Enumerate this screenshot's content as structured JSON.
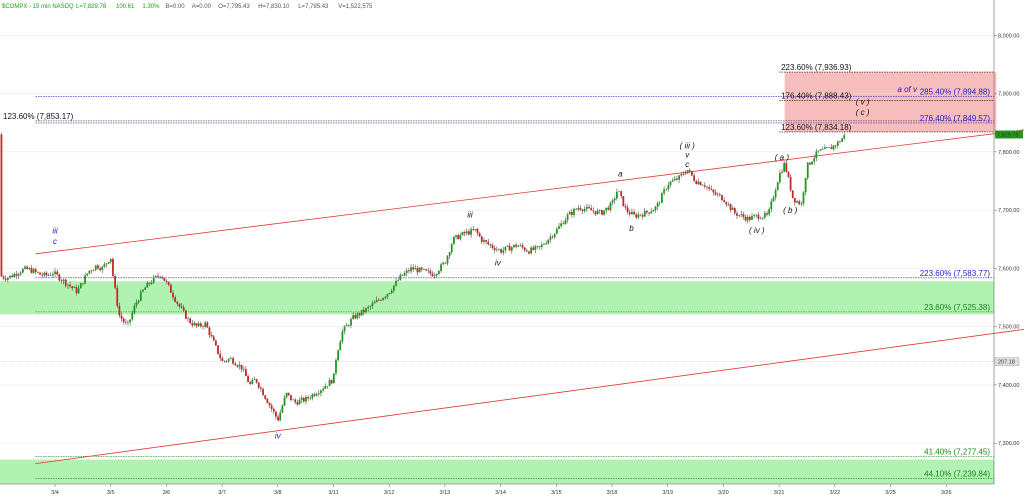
{
  "header": {
    "symbol": "$COMPX - 15 min  NASDQ",
    "stats": [
      {
        "text": "L=7,829.78",
        "color": "#1e9b1e"
      },
      {
        "text": "100.61",
        "color": "#1e9b1e"
      },
      {
        "text": "1.30%",
        "color": "#1e9b1e"
      },
      {
        "text": "B=0.00",
        "color": "#555555"
      },
      {
        "text": "A=0.00",
        "color": "#555555"
      },
      {
        "text": "O=7,795.43",
        "color": "#555555"
      },
      {
        "text": "H=7,830.10",
        "color": "#555555"
      },
      {
        "text": "L=7,795.43",
        "color": "#555555"
      },
      {
        "text": "V=1,522,575",
        "color": "#555555"
      }
    ]
  },
  "chart_data": {
    "type": "candlestick",
    "ylim": [
      7230,
      8040
    ],
    "y_ticks": [
      {
        "v": 8000,
        "label": "8,000.00"
      },
      {
        "v": 7900,
        "label": "7,900.00"
      },
      {
        "v": 7800,
        "label": "7,800.00"
      },
      {
        "v": 7700,
        "label": "7,700.00"
      },
      {
        "v": 7600,
        "label": "7,600.00"
      },
      {
        "v": 7500,
        "label": "7,500.00"
      },
      {
        "v": 7400,
        "label": "7,400.00"
      },
      {
        "v": 7300,
        "label": "7,300.00"
      }
    ],
    "x_ticks": [
      "3/4",
      "3/5",
      "3/6",
      "3/7",
      "3/8",
      "3/11",
      "3/12",
      "3/13",
      "3/14",
      "3/15",
      "3/18",
      "3/19",
      "3/20",
      "3/21",
      "3/22",
      "3/25",
      "3/26"
    ],
    "last_price": {
      "v": 7829.78,
      "label": "7,829.78",
      "color": "#1e9b1e"
    },
    "volume_marker": {
      "label": "207.18",
      "y_level": 7440
    },
    "close_path": [
      [
        0,
        7590
      ],
      [
        0.2,
        7575
      ],
      [
        0.4,
        7560
      ],
      [
        0.6,
        7595
      ],
      [
        0.75,
        7605
      ],
      [
        0.85,
        7600
      ],
      [
        1.0,
        7620
      ],
      [
        1.05,
        7580
      ],
      [
        1.15,
        7520
      ],
      [
        1.3,
        7500
      ],
      [
        1.45,
        7540
      ],
      [
        1.6,
        7565
      ],
      [
        1.75,
        7580
      ],
      [
        1.9,
        7590
      ],
      [
        2.0,
        7575
      ],
      [
        2.2,
        7540
      ],
      [
        2.4,
        7510
      ],
      [
        2.55,
        7500
      ],
      [
        2.7,
        7505
      ],
      [
        3.0,
        7440
      ],
      [
        3.15,
        7445
      ],
      [
        3.35,
        7430
      ],
      [
        3.5,
        7400
      ],
      [
        3.6,
        7410
      ],
      [
        4.0,
        7340
      ],
      [
        4.15,
        7385
      ],
      [
        4.3,
        7370
      ],
      [
        4.5,
        7375
      ],
      [
        4.65,
        7385
      ],
      [
        4.8,
        7395
      ],
      [
        5.0,
        7410
      ],
      [
        5.05,
        7450
      ],
      [
        5.15,
        7490
      ],
      [
        5.35,
        7515
      ],
      [
        5.6,
        7530
      ],
      [
        5.8,
        7545
      ],
      [
        6.0,
        7560
      ],
      [
        6.2,
        7585
      ],
      [
        6.4,
        7600
      ],
      [
        6.6,
        7595
      ],
      [
        6.8,
        7590
      ],
      [
        7.0,
        7610
      ],
      [
        7.15,
        7650
      ],
      [
        7.35,
        7660
      ],
      [
        7.55,
        7665
      ],
      [
        7.65,
        7650
      ],
      [
        7.8,
        7640
      ],
      [
        8.0,
        7630
      ],
      [
        8.3,
        7640
      ],
      [
        8.5,
        7630
      ],
      [
        8.7,
        7635
      ],
      [
        9.0,
        7665
      ],
      [
        9.2,
        7690
      ],
      [
        9.4,
        7705
      ],
      [
        9.6,
        7700
      ],
      [
        9.8,
        7695
      ],
      [
        10.0,
        7710
      ],
      [
        10.1,
        7735
      ],
      [
        10.25,
        7700
      ],
      [
        10.4,
        7690
      ],
      [
        10.6,
        7695
      ],
      [
        10.8,
        7705
      ],
      [
        11.0,
        7745
      ],
      [
        11.2,
        7755
      ],
      [
        11.35,
        7770
      ],
      [
        11.5,
        7750
      ],
      [
        11.65,
        7745
      ],
      [
        11.8,
        7730
      ],
      [
        12.0,
        7720
      ],
      [
        12.2,
        7695
      ],
      [
        12.45,
        7685
      ],
      [
        12.6,
        7690
      ],
      [
        12.8,
        7690
      ],
      [
        13.0,
        7760
      ],
      [
        13.1,
        7780
      ],
      [
        13.25,
        7720
      ],
      [
        13.4,
        7710
      ],
      [
        13.5,
        7775
      ],
      [
        13.7,
        7800
      ],
      [
        13.9,
        7805
      ],
      [
        14.05,
        7815
      ],
      [
        14.2,
        7829.78
      ]
    ],
    "channel_lines": [
      {
        "name": "upper",
        "color": "#e53935",
        "points": [
          [
            -0.35,
            7625
          ],
          [
            17.6,
            7840
          ]
        ]
      },
      {
        "name": "lower",
        "color": "#e53935",
        "points": [
          [
            -0.35,
            7265
          ],
          [
            17.6,
            7498
          ]
        ]
      }
    ],
    "zones": [
      {
        "name": "green-upper",
        "top": 7578,
        "bottom": 7521,
        "color": "#a8f0a8"
      },
      {
        "name": "green-lower",
        "top": 7272,
        "bottom": 7230,
        "color": "#a8f0a8"
      },
      {
        "name": "red-target",
        "top": 7936.93,
        "bottom": 7834.18,
        "x0": 13.1,
        "x1": 16.9,
        "color": "#f6b6b6"
      }
    ],
    "fib_levels": [
      {
        "value": 7936.93,
        "label": "223.60% (7,936.93)",
        "color": "#111111",
        "side": "mid",
        "x0": 13.0
      },
      {
        "value": 7894.88,
        "label": "285.40% (7,894.88)",
        "color": "#2020d0",
        "side": "right",
        "x0": -0.35
      },
      {
        "value": 7888.43,
        "label": "176.40% (7,888.43)",
        "color": "#111111",
        "side": "mid",
        "x0": 13.0
      },
      {
        "value": 7853.17,
        "label": "123.60% (7,853.17)",
        "color": "#111111",
        "side": "left",
        "x0": -0.35
      },
      {
        "value": 7849.57,
        "label": "276.40% (7,849.57)",
        "color": "#2020d0",
        "side": "right",
        "x0": -0.35
      },
      {
        "value": 7834.18,
        "label": "123.60% (7,834.18)",
        "color": "#111111",
        "side": "mid",
        "x0": 13.0
      },
      {
        "value": 7583.77,
        "label": "223.60% (7,583.77)",
        "color": "#2020d0",
        "side": "right",
        "x0": -0.35
      },
      {
        "value": 7525.38,
        "label": "23.60% (7,525.38)",
        "color": "#1a8a1a",
        "side": "right",
        "x0": -0.35
      },
      {
        "value": 7277.45,
        "label": "41.40% (7,277.45)",
        "color": "#1a8a1a",
        "side": "right",
        "x0": -0.35
      },
      {
        "value": 7239.84,
        "label": "44.10% (7,239.84)",
        "color": "#1a8a1a",
        "side": "right",
        "x0": -0.35
      }
    ],
    "wave_labels": [
      {
        "text": "iii",
        "x": 0.0,
        "v": 7660,
        "color": "#2020d0",
        "italic": false
      },
      {
        "text": "c",
        "x": 0.0,
        "v": 7642,
        "color": "#2020d0",
        "italic": false
      },
      {
        "text": "iv",
        "x": 4.0,
        "v": 7308,
        "color": "#2020d0",
        "italic": false
      },
      {
        "text": "iii",
        "x": 7.45,
        "v": 7687,
        "color": "#111111",
        "italic": true
      },
      {
        "text": "iv",
        "x": 7.95,
        "v": 7605,
        "color": "#111111",
        "italic": true
      },
      {
        "text": "a",
        "x": 10.15,
        "v": 7758,
        "color": "#111111",
        "italic": true
      },
      {
        "text": "b",
        "x": 10.35,
        "v": 7664,
        "color": "#111111",
        "italic": true
      },
      {
        "text": "( iii )",
        "x": 11.35,
        "v": 7806,
        "color": "#111111",
        "italic": true
      },
      {
        "text": "v",
        "x": 11.35,
        "v": 7790,
        "color": "#111111",
        "italic": true
      },
      {
        "text": "c",
        "x": 11.35,
        "v": 7774,
        "color": "#111111",
        "italic": true
      },
      {
        "text": "( a )",
        "x": 13.05,
        "v": 7786,
        "color": "#111111",
        "italic": true
      },
      {
        "text": "( iv )",
        "x": 12.6,
        "v": 7661,
        "color": "#111111",
        "italic": true
      },
      {
        "text": "( b )",
        "x": 13.2,
        "v": 7695,
        "color": "#111111",
        "italic": true
      },
      {
        "text": "( v )",
        "x": 14.5,
        "v": 7881,
        "color": "#111111",
        "italic": true
      },
      {
        "text": "( c )",
        "x": 14.5,
        "v": 7863,
        "color": "#111111",
        "italic": true
      },
      {
        "text": "a of v",
        "x": 15.3,
        "v": 7903,
        "color": "#2020d0",
        "italic": false
      }
    ]
  },
  "colors": {
    "up_candle": "#1e9b1e",
    "down_candle": "#c62828",
    "grid": "#bbbbbb",
    "axis": "#666666"
  }
}
